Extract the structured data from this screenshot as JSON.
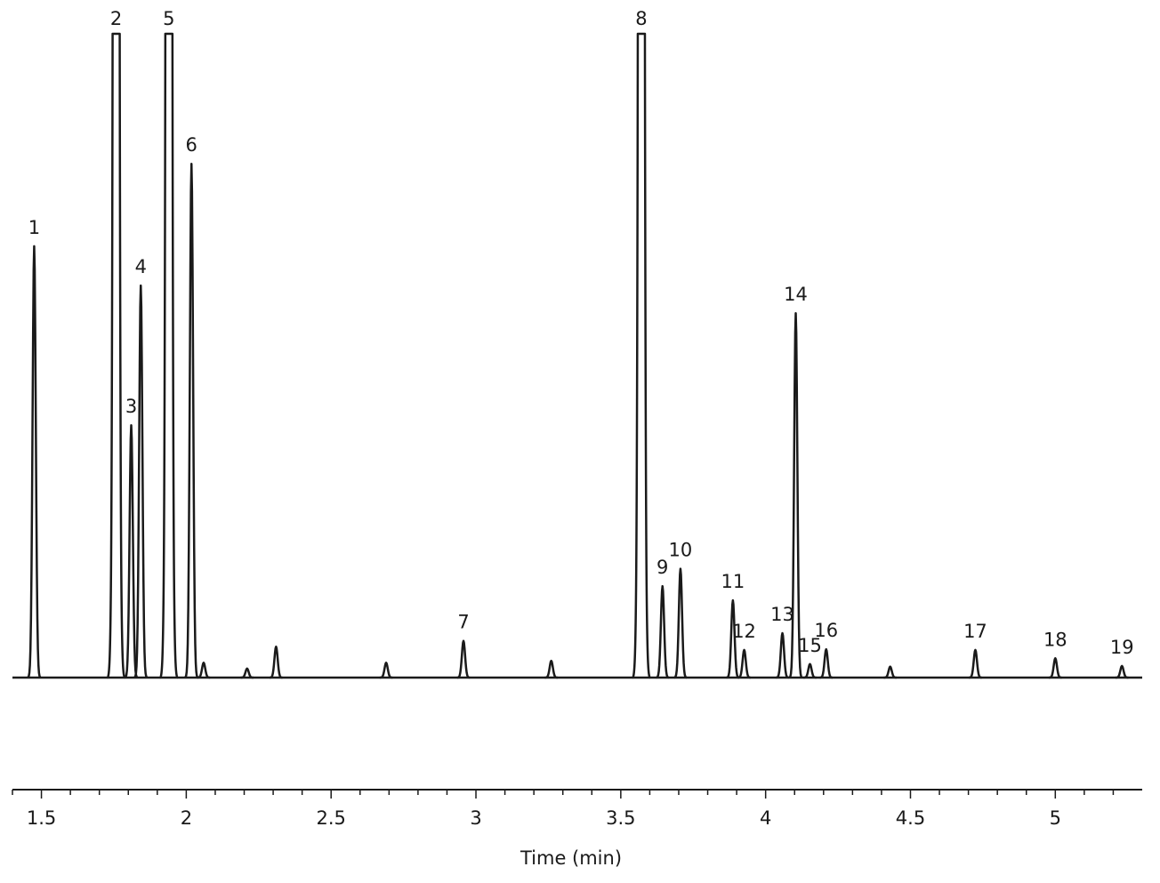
{
  "chart_data": {
    "type": "chromatogram",
    "x_label": "Time (min)",
    "xlim": [
      1.4,
      5.3
    ],
    "ylim": [
      0,
      100
    ],
    "xticks": [
      1.5,
      2,
      2.5,
      3,
      3.5,
      4,
      4.5,
      5
    ],
    "xminorticks": [
      1.4,
      1.6,
      1.7,
      1.8,
      1.9,
      2.1,
      2.2,
      2.3,
      2.4,
      2.6,
      2.7,
      2.8,
      2.9,
      3.1,
      3.2,
      3.3,
      3.4,
      3.6,
      3.7,
      3.8,
      3.9,
      4.1,
      4.2,
      4.3,
      4.4,
      4.6,
      4.7,
      4.8,
      4.9,
      5.1,
      5.2
    ],
    "color": "#1a1a1a",
    "peaks": {
      "labels": [
        "1",
        "2",
        "3",
        "4",
        "5",
        "6",
        null,
        null,
        null,
        null,
        "7",
        null,
        "8",
        "9",
        "10",
        "11",
        "12",
        "13",
        "14",
        "15",
        "16",
        null,
        "17",
        "18",
        "19"
      ],
      "x": [
        1.475,
        1.758,
        1.81,
        1.843,
        1.94,
        2.018,
        2.06,
        2.21,
        2.31,
        2.69,
        2.957,
        3.26,
        3.571,
        3.644,
        3.706,
        3.887,
        3.926,
        4.058,
        4.104,
        4.153,
        4.209,
        4.43,
        4.724,
        5.0,
        5.23
      ],
      "values": [
        67.0,
        100,
        39.2,
        60.9,
        100,
        79.8,
        2.3,
        1.4,
        4.8,
        2.3,
        5.7,
        2.6,
        100,
        14.2,
        16.9,
        12.0,
        4.3,
        6.9,
        56.6,
        2.1,
        4.4,
        1.7,
        4.3,
        3.0,
        1.8
      ]
    }
  }
}
